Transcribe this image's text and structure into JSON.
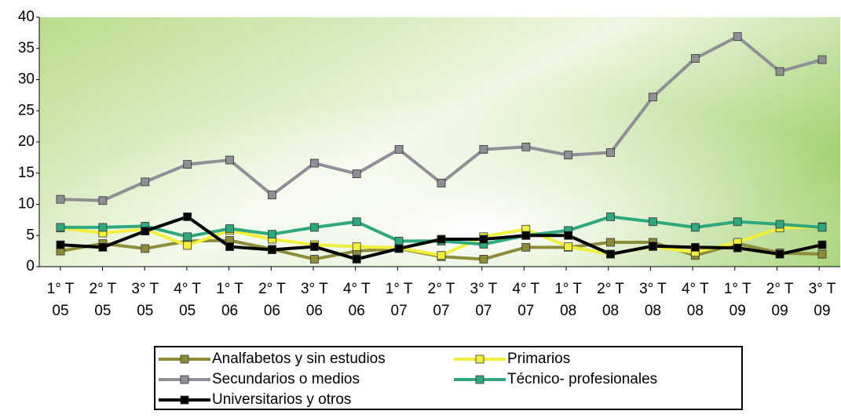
{
  "chart_data": {
    "type": "line",
    "categories": [
      [
        "1° T",
        "05"
      ],
      [
        "2° T",
        "05"
      ],
      [
        "3° T",
        "05"
      ],
      [
        "4° T",
        "05"
      ],
      [
        "1° T",
        "06"
      ],
      [
        "2° T",
        "06"
      ],
      [
        "3° T",
        "06"
      ],
      [
        "4° T",
        "06"
      ],
      [
        "1° T",
        "07"
      ],
      [
        "2° T",
        "07"
      ],
      [
        "3° T",
        "07"
      ],
      [
        "4° T",
        "07"
      ],
      [
        "1° T",
        "08"
      ],
      [
        "2° T",
        "08"
      ],
      [
        "3° T",
        "08"
      ],
      [
        "4° T",
        "08"
      ],
      [
        "1° T",
        "09"
      ],
      [
        "2° T",
        "09"
      ],
      [
        "3° T",
        "09"
      ]
    ],
    "series": [
      {
        "name": "Analfabetos y sin estudios",
        "color": "#8c8c3a",
        "values": [
          2.5,
          3.7,
          2.9,
          4.1,
          4.2,
          2.8,
          1.2,
          2.5,
          2.9,
          1.6,
          1.2,
          3.1,
          3.1,
          3.9,
          3.9,
          1.8,
          3.7,
          2.2,
          2.0
        ]
      },
      {
        "name": "Primarios",
        "color": "#f0f03c",
        "values": [
          6.2,
          5.4,
          6.0,
          3.4,
          5.8,
          4.4,
          3.5,
          3.2,
          3.0,
          1.8,
          4.8,
          6.0,
          3.2,
          2.0,
          3.2,
          2.3,
          3.9,
          6.2,
          6.4
        ]
      },
      {
        "name": "Secundarios o medios",
        "color": "#8e9096",
        "values": [
          10.8,
          10.6,
          13.6,
          16.4,
          17.1,
          11.5,
          16.6,
          14.9,
          18.8,
          13.4,
          18.8,
          19.2,
          17.9,
          18.3,
          27.2,
          33.4,
          36.9,
          31.3,
          33.2
        ]
      },
      {
        "name": "Técnico- profesionales",
        "color": "#2ea87c",
        "values": [
          6.3,
          6.3,
          6.5,
          4.8,
          6.1,
          5.2,
          6.3,
          7.2,
          4.1,
          4.1,
          3.6,
          5.0,
          5.8,
          8.0,
          7.2,
          6.3,
          7.2,
          6.8,
          6.3
        ]
      },
      {
        "name": "Universitarios y otros",
        "color": "#000000",
        "values": [
          3.5,
          3.1,
          5.7,
          8.0,
          3.2,
          2.7,
          3.2,
          1.2,
          2.9,
          4.4,
          4.4,
          5.0,
          5.0,
          2.0,
          3.3,
          3.1,
          3.0,
          2.0,
          3.5
        ]
      }
    ],
    "ylim": [
      0,
      40
    ],
    "yticks": [
      0,
      5,
      10,
      15,
      20,
      25,
      30,
      35,
      40
    ],
    "legend": "bottom"
  }
}
